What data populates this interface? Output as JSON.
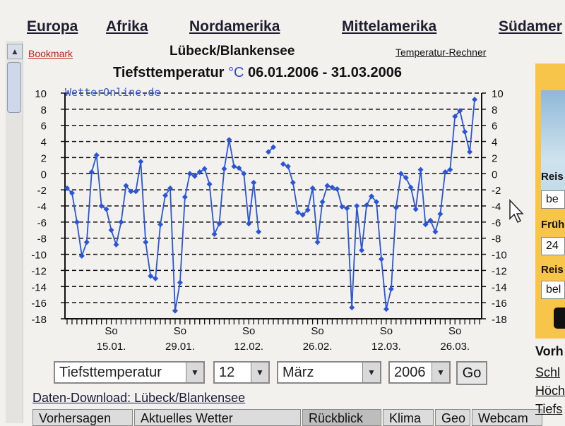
{
  "nav": {
    "items": [
      "Europa",
      "Afrika",
      "Nordamerika",
      "Mittelamerika",
      "Südamer"
    ]
  },
  "header": {
    "bookmark": "Bookmark",
    "station": "Lübeck/Blankensee",
    "calculator": "Temperatur-Rechner",
    "title_main": "Tiefsttemperatur",
    "title_unit": "°C",
    "title_range": "06.01.2006 - 31.03.2006"
  },
  "chart_data": {
    "type": "line",
    "watermark": "WetterOnline.de",
    "ylim": [
      -18,
      10
    ],
    "yticks": [
      10,
      8,
      6,
      4,
      2,
      0,
      -2,
      -4,
      -6,
      -8,
      -10,
      -12,
      -14,
      -16,
      -18
    ],
    "x_range": [
      "06.01.2006",
      "31.03.2006"
    ],
    "xticks": [
      {
        "date": "15.01.2006",
        "top": "So",
        "bottom": "15.01."
      },
      {
        "date": "29.01.2006",
        "top": "So",
        "bottom": "29.01."
      },
      {
        "date": "12.02.2006",
        "top": "So",
        "bottom": "12.02."
      },
      {
        "date": "26.02.2006",
        "top": "So",
        "bottom": "26.02."
      },
      {
        "date": "12.03.2006",
        "top": "So",
        "bottom": "12.03."
      },
      {
        "date": "26.03.2006",
        "top": "So",
        "bottom": "26.03."
      }
    ],
    "grid": true,
    "color": "#2a55d8",
    "series": [
      {
        "values": [
          -1.8,
          -2.4,
          -6,
          -10.2,
          -8.5,
          0.2,
          2.3,
          -4,
          -4.4,
          -7,
          -8.8,
          -6,
          -1.5,
          -2.2,
          -2.2,
          1.5,
          -8.5,
          -12.7,
          -13,
          -6.3,
          -2.7,
          -1.8,
          -17,
          -13.5,
          -2.9,
          0,
          -0.3,
          0.2,
          0.6,
          -1.3,
          -7.5,
          -6.2,
          0.6,
          4.2,
          0.9,
          0.7,
          0,
          -6.2,
          -1.1,
          -7.2,
          null,
          2.7,
          3.3,
          null,
          1.2,
          0.9,
          -1.1,
          -4.8,
          -5.1,
          -4.5,
          -1.8,
          -8.5,
          -3.5,
          -1.5,
          -1.7,
          -1.9,
          -4.1,
          -4.3,
          -16.6,
          -4,
          -9.5,
          -3.9,
          -2.8,
          -3.5,
          -10.6,
          -16.8,
          -14.3,
          -4.2,
          0,
          -0.5,
          -1.7,
          -4.4,
          0.5,
          -6.3,
          -5.8,
          -7.2,
          -5,
          0.2,
          0.5,
          7.1,
          7.8,
          5.2,
          2.7,
          9.2
        ]
      }
    ]
  },
  "controls": {
    "metric": "Tiefsttemperatur",
    "day": "12",
    "month": "März",
    "year": "2006",
    "go": "Go"
  },
  "download": "Daten-Download: Lübeck/Blankensee",
  "tabs": [
    "Vorhersagen",
    "Aktuelles Wetter",
    "Rückblick",
    "Klima",
    "Geo",
    "Webcam"
  ],
  "sidebar": {
    "labels": [
      "Reis",
      "Früh",
      "Reis"
    ],
    "inputs": [
      "be",
      "24",
      "bel"
    ]
  },
  "right_links": {
    "heading": "Vorh",
    "links": [
      "Schl",
      "Höch",
      "Tiefs"
    ]
  }
}
